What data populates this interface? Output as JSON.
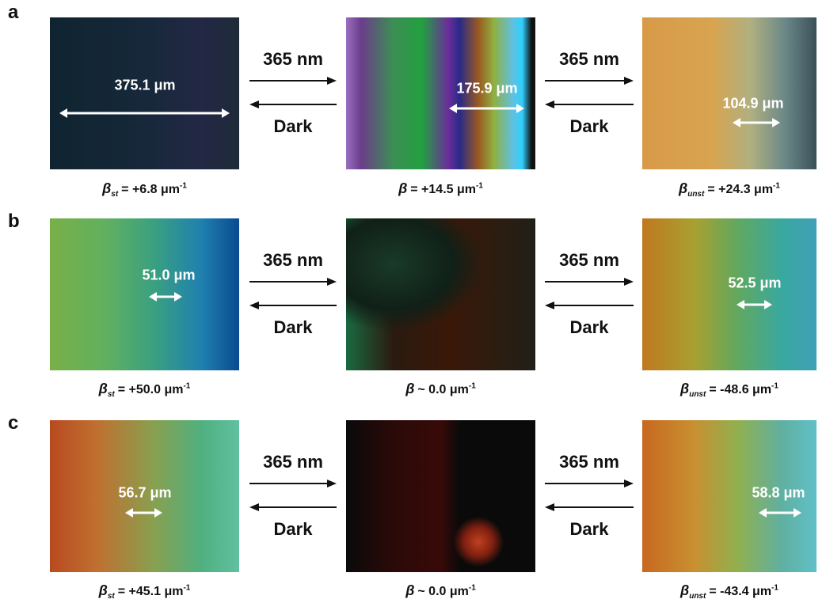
{
  "rows": [
    {
      "label": "a",
      "panels": [
        {
          "measure": "375.1 μm",
          "caption": {
            "symbol": "β",
            "subscript": "st",
            "text": "= +6.8 μm",
            "superscript": "-1"
          }
        },
        {
          "measure": "175.9 μm",
          "caption": {
            "symbol": "β",
            "text": "= +14.5 μm",
            "superscript": "-1"
          }
        },
        {
          "measure": "104.9 μm",
          "caption": {
            "symbol": "β",
            "subscript": "unst",
            "text": "= +24.3 μm",
            "superscript": "-1"
          }
        }
      ],
      "transitions": [
        {
          "light": "365 nm",
          "dark": "Dark"
        },
        {
          "light": "365 nm",
          "dark": "Dark"
        }
      ]
    },
    {
      "label": "b",
      "panels": [
        {
          "measure": "51.0 μm",
          "caption": {
            "symbol": "β",
            "subscript": "st",
            "text": "= +50.0 μm",
            "superscript": "-1"
          }
        },
        {
          "caption": {
            "symbol": "β",
            "text": "~ 0.0 μm",
            "superscript": "-1"
          }
        },
        {
          "measure": "52.5 μm",
          "caption": {
            "symbol": "β",
            "subscript": "unst",
            "text": "= -48.6 μm",
            "superscript": "-1"
          }
        }
      ],
      "transitions": [
        {
          "light": "365 nm",
          "dark": "Dark"
        },
        {
          "light": "365 nm",
          "dark": "Dark"
        }
      ]
    },
    {
      "label": "c",
      "panels": [
        {
          "measure": "56.7 μm",
          "caption": {
            "symbol": "β",
            "subscript": "st",
            "text": "= +45.1 μm",
            "superscript": "-1"
          }
        },
        {
          "caption": {
            "symbol": "β",
            "text": "~ 0.0 μm",
            "superscript": "-1"
          }
        },
        {
          "measure": "58.8 μm",
          "caption": {
            "symbol": "β",
            "subscript": "unst",
            "text": "= -43.4 μm",
            "superscript": "-1"
          }
        }
      ],
      "transitions": [
        {
          "light": "365 nm",
          "dark": "Dark"
        },
        {
          "light": "365 nm",
          "dark": "Dark"
        }
      ]
    }
  ]
}
